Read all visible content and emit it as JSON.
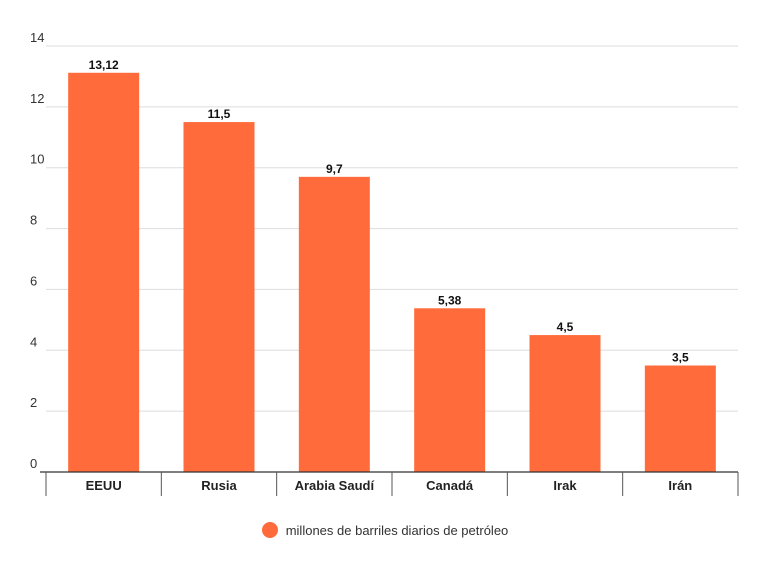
{
  "chart_data": {
    "type": "bar",
    "categories": [
      "EEUU",
      "Rusia",
      "Arabia Saudí",
      "Canadá",
      "Irak",
      "Irán"
    ],
    "series": [
      {
        "name": "millones de barriles diarios de petróleo",
        "values": [
          13.12,
          11.5,
          9.7,
          5.38,
          4.5,
          3.5
        ],
        "value_labels": [
          "13,12",
          "11,5",
          "9,7",
          "5,38",
          "4,5",
          "3,5"
        ],
        "color": "#ff6b3b"
      }
    ],
    "title": "",
    "xlabel": "",
    "ylabel": "",
    "ylim": [
      0,
      14
    ],
    "yticks": [
      0,
      2,
      4,
      6,
      8,
      10,
      12,
      14
    ],
    "ytick_labels": [
      "0",
      "2",
      "4",
      "6",
      "8",
      "10",
      "12",
      "14"
    ],
    "grid": true,
    "legend_position": "bottom-center"
  }
}
